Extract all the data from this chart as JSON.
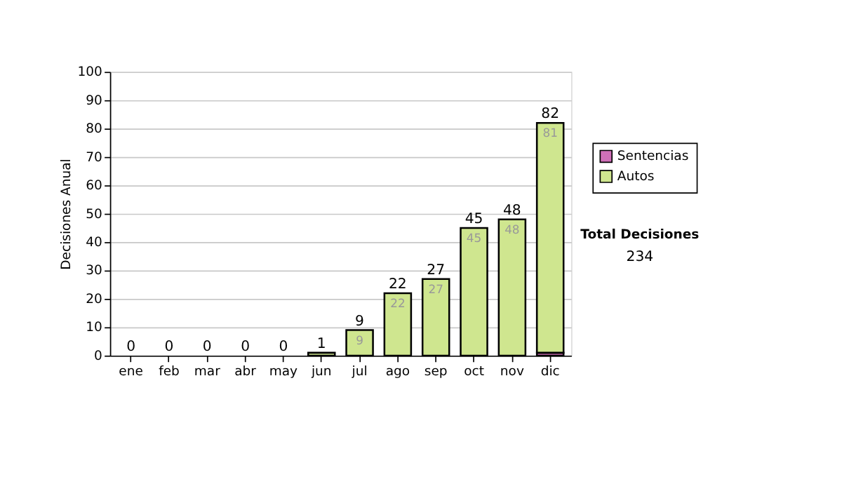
{
  "chart_data": {
    "type": "bar",
    "stacked": true,
    "ylabel": "Decisiones Anual",
    "categories": [
      "ene",
      "feb",
      "mar",
      "abr",
      "may",
      "jun",
      "jul",
      "ago",
      "sep",
      "oct",
      "nov",
      "dic"
    ],
    "series": [
      {
        "name": "Sentencias",
        "color": "#d070b8",
        "values": [
          0,
          0,
          0,
          0,
          0,
          0,
          0,
          0,
          0,
          0,
          0,
          1
        ]
      },
      {
        "name": "Autos",
        "color": "#cfe68f",
        "values": [
          0,
          0,
          0,
          0,
          0,
          1,
          9,
          22,
          27,
          45,
          48,
          81
        ],
        "value_labels": [
          null,
          null,
          null,
          null,
          null,
          null,
          "9",
          "22",
          "27",
          "45",
          "48",
          "81"
        ]
      }
    ],
    "totals": [
      "0",
      "0",
      "0",
      "0",
      "0",
      "1",
      "9",
      "22",
      "27",
      "45",
      "48",
      "82"
    ],
    "ylim": [
      0,
      100
    ],
    "yticks": [
      0,
      10,
      20,
      30,
      40,
      50,
      60,
      70,
      80,
      90,
      100
    ],
    "grid": "y",
    "legend": "right",
    "annotations": [
      "Total Decisiones",
      "234"
    ]
  }
}
